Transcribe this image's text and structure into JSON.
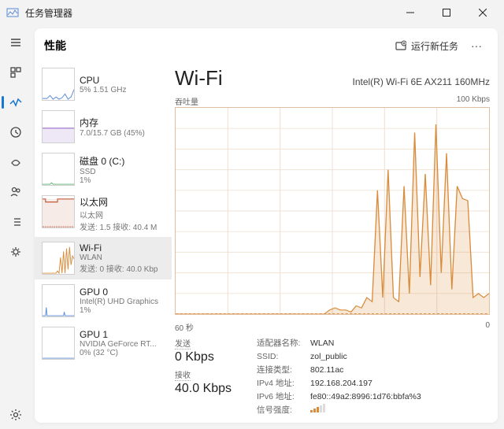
{
  "titlebar": {
    "title": "任务管理器"
  },
  "header": {
    "heading": "性能",
    "new_task": "运行新任务"
  },
  "colors": {
    "accent": "#d88c3c",
    "accent_fill": "rgba(216,140,60,0.20)",
    "grid": "#f0e2d4",
    "border": "#e0c0a0",
    "cpu": "#5b8ad6",
    "mem": "#8a5bc0",
    "disk": "#5bb070",
    "eth": "#c05b3c",
    "gpu": "#5b8ad6"
  },
  "resources": [
    {
      "name": "CPU",
      "sub": "5% 1.51 GHz"
    },
    {
      "name": "内存",
      "sub": "7.0/15.7 GB (45%)"
    },
    {
      "name": "磁盘 0 (C:)",
      "sub": "SSD",
      "sub2": "1%"
    },
    {
      "name": "以太网",
      "sub": "以太网",
      "sub2": "发送: 1.5 接收: 40.4 M"
    },
    {
      "name": "Wi-Fi",
      "sub": "WLAN",
      "sub2": "发送: 0 接收: 40.0 Kbp"
    },
    {
      "name": "GPU 0",
      "sub": "Intel(R) UHD Graphics",
      "sub2": "1%"
    },
    {
      "name": "GPU 1",
      "sub": "NVIDIA GeForce RT...",
      "sub2": "0% (32 °C)"
    }
  ],
  "detail": {
    "title": "Wi-Fi",
    "adapter": "Intel(R) Wi-Fi 6E AX211 160MHz",
    "chart_top_left": "吞吐量",
    "chart_top_right": "100 Kbps",
    "time_left": "60 秒",
    "time_right": "0",
    "send_label": "发送",
    "send_value": "0 Kbps",
    "recv_label": "接收",
    "recv_value": "40.0 Kbps",
    "info": [
      {
        "k": "适配器名称:",
        "v": "WLAN"
      },
      {
        "k": "SSID:",
        "v": "zol_public"
      },
      {
        "k": "连接类型:",
        "v": "802.11ac"
      },
      {
        "k": "IPv4 地址:",
        "v": "192.168.204.197"
      },
      {
        "k": "IPv6 地址:",
        "v": "fe80::49a2:8996:1d76:bbfa%3"
      },
      {
        "k": "信号强度:",
        "v": ""
      }
    ]
  },
  "chart": {
    "type": "area-line",
    "xrange": [
      0,
      60
    ],
    "yrange": [
      0,
      100
    ],
    "grid_rows": 10,
    "grid_cols": 6,
    "series": [
      0,
      0,
      0,
      0,
      0,
      0,
      0,
      0,
      0,
      0,
      0,
      0,
      0,
      0,
      0,
      0,
      0,
      0,
      0,
      0,
      0,
      0,
      0,
      0,
      0,
      0,
      0,
      0,
      0,
      2,
      3,
      2,
      2,
      1,
      4,
      3,
      8,
      6,
      60,
      8,
      70,
      8,
      6,
      62,
      10,
      88,
      18,
      68,
      14,
      92,
      20,
      78,
      12,
      62,
      56,
      55,
      8,
      10,
      8,
      10
    ]
  }
}
